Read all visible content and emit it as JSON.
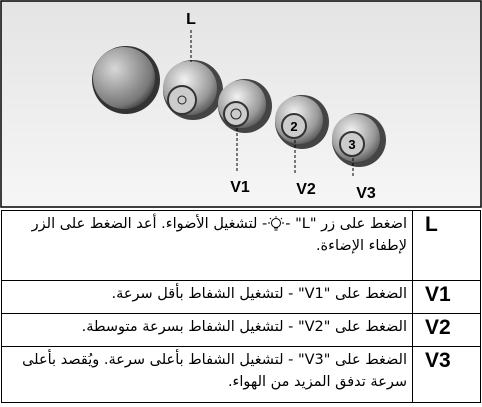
{
  "diagram": {
    "labels": [
      "L",
      "V1",
      "V2",
      "V3"
    ]
  },
  "table": {
    "rows": [
      {
        "key": "L",
        "text_before": "اضغط على زر \"L\" -",
        "text_after": "- لتشغيل الأضواء. أعد الضغط على الزر لإطفاء الإضاءة."
      },
      {
        "key": "V1",
        "text": "الضغط على \"V1\" - لتشغيل الشفاط بأقل سرعة."
      },
      {
        "key": "V2",
        "text": "الضغط على \"V2\" - لتشغيل الشفاط بسرعة متوسطة."
      },
      {
        "key": "V3",
        "text": "الضغط على \"V3\" - لتشغيل الشفاط بأعلى سرعة. ويُقصد بأعلى سرعة تدفق المزيد من الهواء."
      }
    ]
  }
}
